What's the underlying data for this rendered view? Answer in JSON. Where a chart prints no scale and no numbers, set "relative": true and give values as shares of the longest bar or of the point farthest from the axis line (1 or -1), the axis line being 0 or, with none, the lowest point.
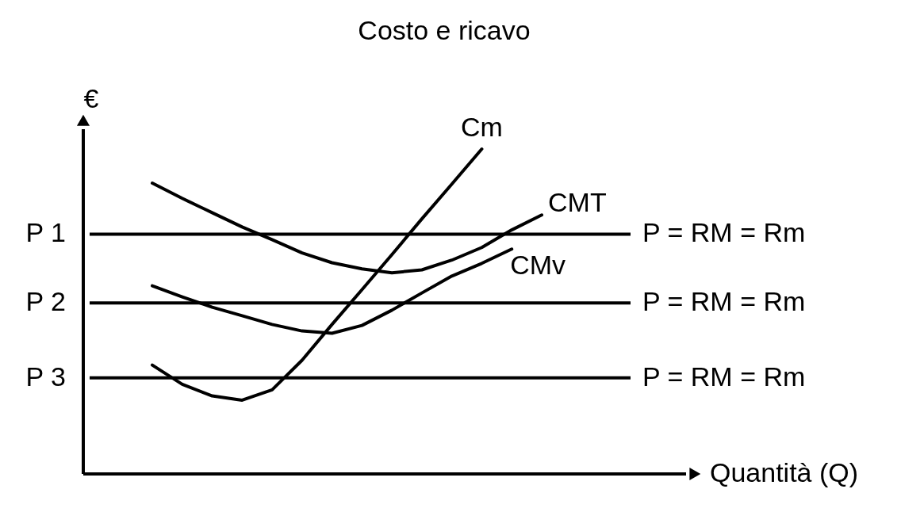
{
  "chart_data": {
    "type": "line",
    "title": "Costo e ricavo",
    "ylabel": "€",
    "relative": true,
    "line_style": "solid",
    "categories": [
      null,
      null,
      null,
      null,
      null,
      null,
      null,
      null,
      null,
      null,
      null,
      null,
      null,
      null
    ],
    "series": [
      {
        "name": "Cm",
        "color": "#000000",
        "values": [
          0.335,
          0.276,
          0.24,
          0.227,
          0.259,
          0.35,
          0.46,
          0.567,
          0.675,
          0.785,
          0.892,
          1.0,
          null,
          null
        ]
      },
      {
        "name": "CMT",
        "color": "#000000",
        "values": [
          0.895,
          0.848,
          0.804,
          0.76,
          0.721,
          0.68,
          0.65,
          0.631,
          0.619,
          0.628,
          0.658,
          0.697,
          0.751,
          0.797
        ]
      },
      {
        "name": "CMv",
        "color": "#000000",
        "values": [
          0.579,
          0.545,
          0.513,
          0.487,
          0.46,
          0.44,
          0.433,
          0.457,
          0.504,
          0.557,
          0.609,
          0.648,
          0.692,
          null
        ]
      }
    ],
    "ref_lines": [
      {
        "axis": "y",
        "value": 0.738,
        "label": "P = RM = Rm",
        "color": "#000000",
        "line_style": "solid"
      },
      {
        "axis": "y",
        "value": 0.526,
        "label": "P = RM = Rm",
        "color": "#000000",
        "line_style": "solid"
      },
      {
        "axis": "y",
        "value": 0.296,
        "label": "P = RM = Rm",
        "color": "#000000",
        "line_style": "solid"
      }
    ],
    "annotations": [
      "P 1",
      "P 2",
      "P 3",
      "Quantità (Q)"
    ]
  }
}
